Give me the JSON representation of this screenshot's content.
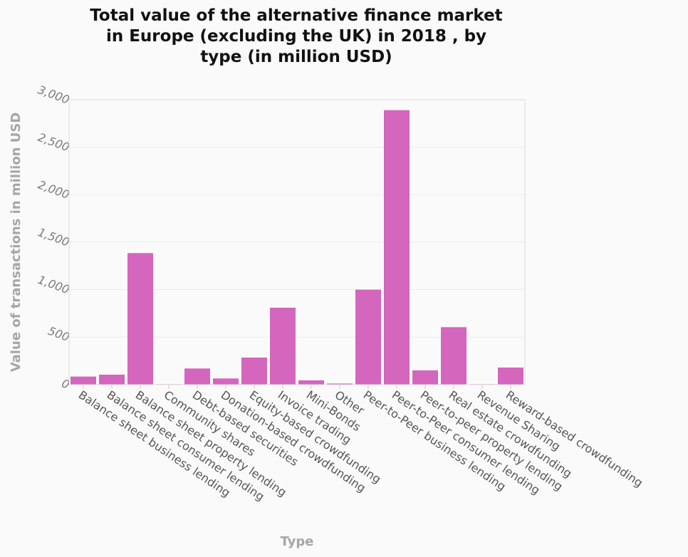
{
  "chart_data": {
    "type": "bar",
    "title_lines": [
      "Total value of the alternative finance market",
      "in Europe (excluding the UK) in 2018 , by",
      "type (in million USD)"
    ],
    "xlabel": "Type",
    "ylabel": "Value of transactions in million USD",
    "ylim": [
      0,
      3000
    ],
    "yticks": [
      0,
      500,
      1000,
      1500,
      2000,
      2500,
      3000
    ],
    "ytick_labels": [
      "0",
      "500",
      "1,000",
      "1,500",
      "2,000",
      "2,500",
      "3,000"
    ],
    "grid": true,
    "bar_color": "#d466bd",
    "categories": [
      "Balance sheet business lending",
      "Balance sheet consumer lending",
      "Balance sheet property lending",
      "Community shares",
      "Debt-based securities",
      "Donation-based crowdfunding",
      "Equity-based crowdfunding",
      "Invoice trading",
      "Mini-Bonds",
      "Other",
      "Peer-to-Peer business lending",
      "Peer-to-Peer consumer lending",
      "Peer-to-peer property lending",
      "Real estate crowdfunding",
      "Revenue Sharing",
      "Reward-based crowdfunding"
    ],
    "values": [
      85,
      105,
      1385,
      5,
      170,
      65,
      285,
      810,
      45,
      12,
      1000,
      2890,
      150,
      605,
      5,
      180
    ]
  }
}
